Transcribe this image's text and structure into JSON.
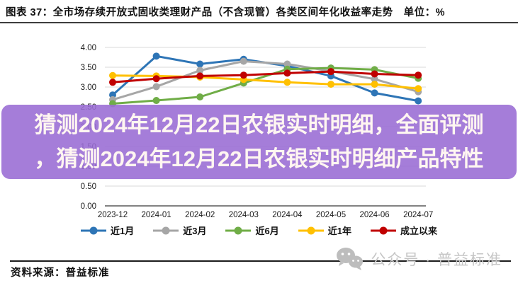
{
  "header": {
    "title": "图表 37：全市场存续开放式固收类理财产品（不含现管）各类区间年化收益率走势　单位：%"
  },
  "overlay": {
    "line1": "猜测2024年12月22日农银实时明细，全面评测",
    "line2": "，猜测2024年12月22日农银实时明细产品特性",
    "bg_color": "#9A6CD4",
    "text_color": "#FFF6F1"
  },
  "chart_data": {
    "type": "line",
    "x": [
      "2023-12",
      "2024-01",
      "2024-02",
      "2024-03",
      "2024-04",
      "2024-05",
      "2024-06",
      "2024-07"
    ],
    "series": [
      {
        "name": "近1月",
        "color": "#2E75B6",
        "values": [
          2.8,
          3.78,
          3.58,
          3.7,
          3.53,
          3.28,
          2.85,
          2.65
        ]
      },
      {
        "name": "近3月",
        "color": "#A6A6A6",
        "values": [
          2.68,
          3.01,
          3.42,
          3.65,
          3.58,
          3.4,
          3.2,
          2.88
        ]
      },
      {
        "name": "近6月",
        "color": "#70AD47",
        "values": [
          2.58,
          2.66,
          2.75,
          3.1,
          3.45,
          3.48,
          3.44,
          3.22
        ]
      },
      {
        "name": "近1年",
        "color": "#FFC000",
        "values": [
          3.29,
          3.28,
          3.25,
          3.19,
          3.12,
          3.07,
          3.07,
          2.96
        ]
      },
      {
        "name": "成立以来",
        "color": "#C00000",
        "values": [
          3.12,
          3.21,
          3.28,
          3.3,
          3.35,
          3.39,
          3.33,
          3.3
        ]
      }
    ],
    "ylim": [
      0,
      4.0
    ],
    "ytick_step": 0.5,
    "ytick_format": "2dp",
    "grid": true,
    "gridline_color": "#D9D9D9",
    "axis_line_color": "#595959",
    "tick_label_color": "#1a1a1a",
    "legend_position": "bottom"
  },
  "footer": {
    "source": "资料来源：普益标准",
    "watermark": "公众号 · 普益标准"
  }
}
